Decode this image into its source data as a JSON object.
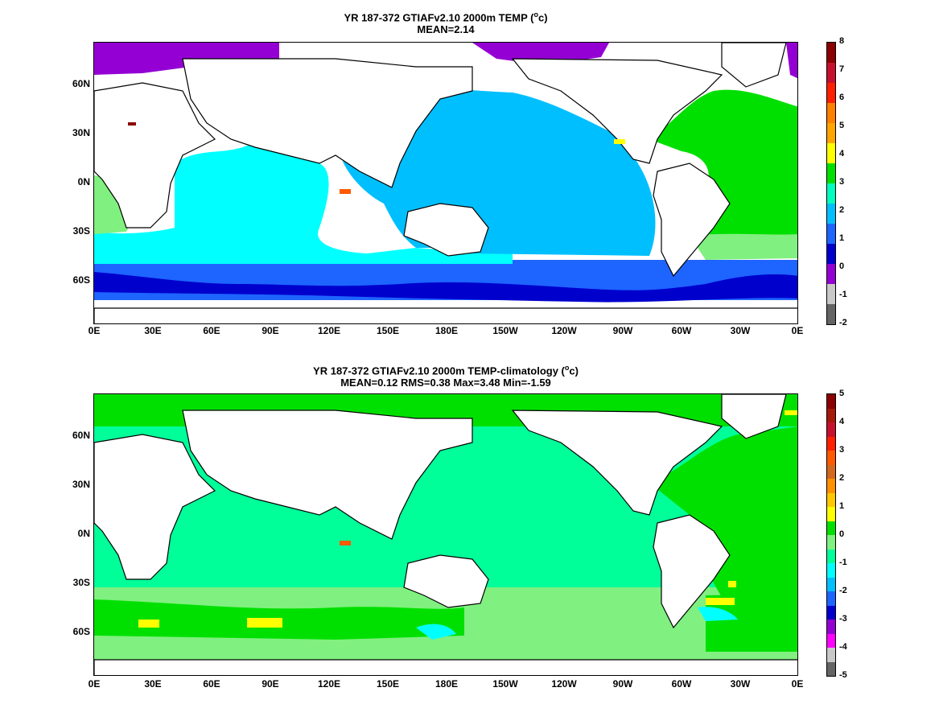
{
  "panel1": {
    "title_prefix": "YR 187-372 GTIAFv2.10 2000m TEMP (",
    "unit_sup": "o",
    "unit": "c)",
    "stats": "MEAN=2.14",
    "colorbar_ticks": [
      "8",
      "7",
      "6",
      "5",
      "4",
      "3",
      "2",
      "1",
      "0",
      "-1",
      "-2"
    ]
  },
  "panel2": {
    "title_prefix": "YR 187-372 GTIAFv2.10 2000m TEMP-climatology (",
    "unit_sup": "o",
    "unit": "c)",
    "stats": "MEAN=0.12   RMS=0.38   Max=3.48   Min=-1.59",
    "colorbar_ticks": [
      "5",
      "4",
      "3",
      "2",
      "1",
      "0",
      "-1",
      "-2",
      "-3",
      "-4",
      "-5"
    ]
  },
  "axes": {
    "lat_labels": [
      "60N",
      "30N",
      "0N",
      "30S",
      "60S"
    ],
    "lon_labels": [
      "0E",
      "30E",
      "60E",
      "90E",
      "120E",
      "150E",
      "180E",
      "150W",
      "120W",
      "90W",
      "60W",
      "30W",
      "0E"
    ]
  },
  "colors": {
    "panel1_scale": [
      "#8b0000",
      "#d41a00",
      "#ff5a00",
      "#ffa500",
      "#ffff00",
      "#00e000",
      "#00ffbf",
      "#00bfff",
      "#1e64ff",
      "#0000cd",
      "#9400d3",
      "#ff00ff",
      "#c8c8c8",
      "#646464"
    ],
    "panel2_scale": [
      "#8b0000",
      "#d41a00",
      "#ff5a00",
      "#ffa500",
      "#ffff00",
      "#00e000",
      "#80f080",
      "#00ff99",
      "#00ffff",
      "#00bfff",
      "#1e64ff",
      "#0000cd",
      "#9400d3",
      "#ff00ff",
      "#c8c8c8",
      "#646464"
    ]
  }
}
